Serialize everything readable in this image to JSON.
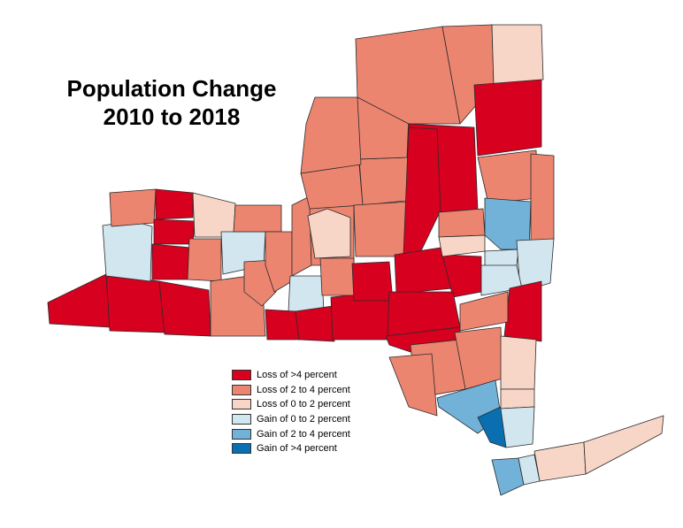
{
  "title": {
    "line1": "Population Change",
    "line2": "2010 to 2018"
  },
  "legend": [
    {
      "label": "Loss of >4 percent",
      "color": "#d7001f"
    },
    {
      "label": "Loss of 2 to 4 percent",
      "color": "#ec8570"
    },
    {
      "label": "Loss of 0 to 2 percent",
      "color": "#f7d6c7"
    },
    {
      "label": "Gain of 0 to 2 percent",
      "color": "#d2e6f0"
    },
    {
      "label": "Gain of 2 to 4 percent",
      "color": "#72b1d8"
    },
    {
      "label": "Gain of >4 percent",
      "color": "#0a6fb0"
    }
  ],
  "colors": {
    "background": "#ffffff",
    "county_border": "#2a2a2a"
  }
}
